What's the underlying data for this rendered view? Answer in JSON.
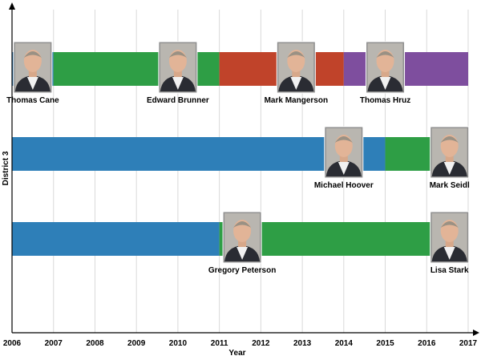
{
  "chart_data": {
    "type": "timeline",
    "title": "",
    "xlabel": "Year",
    "ylabel": "District 3",
    "xlim": [
      2006,
      2017
    ],
    "xticks": [
      "2006",
      "2007",
      "2008",
      "2009",
      "2010",
      "2011",
      "2012",
      "2013",
      "2014",
      "2015",
      "2016",
      "2017"
    ],
    "grid": "vertical",
    "colors": {
      "blue": "#2e7fb8",
      "green": "#2e9e45",
      "red": "#c0432a",
      "purple": "#7e4e9e"
    },
    "rows": [
      {
        "segments": [
          {
            "start": 2006.0,
            "end": 2007.0,
            "color": "#2e7fb8"
          },
          {
            "start": 2007.0,
            "end": 2011.0,
            "color": "#2e9e45"
          },
          {
            "start": 2011.0,
            "end": 2014.0,
            "color": "#c0432a"
          },
          {
            "start": 2014.0,
            "end": 2017.0,
            "color": "#7e4e9e"
          }
        ],
        "people": [
          {
            "name": "Thomas Cane",
            "x": 2006.5,
            "label_pos": "below"
          },
          {
            "name": "Edward Brunner",
            "x": 2010.0,
            "label_pos": "below"
          },
          {
            "name": "Mark Mangerson",
            "x": 2012.85,
            "label_pos": "below"
          },
          {
            "name": "Thomas Hruz",
            "x": 2015.0,
            "label_pos": "below"
          }
        ]
      },
      {
        "segments": [
          {
            "start": 2006.0,
            "end": 2015.0,
            "color": "#2e7fb8"
          },
          {
            "start": 2015.0,
            "end": 2017.0,
            "color": "#2e9e45"
          }
        ],
        "people": [
          {
            "name": "Michael Hoover",
            "x": 2014.0,
            "label_pos": "below"
          },
          {
            "name": "Mark Seidl",
            "x": 2016.55,
            "label_pos": "below"
          }
        ]
      },
      {
        "segments": [
          {
            "start": 2006.0,
            "end": 2011.0,
            "color": "#2e7fb8"
          },
          {
            "start": 2011.0,
            "end": 2017.0,
            "color": "#2e9e45"
          }
        ],
        "people": [
          {
            "name": "Gregory Peterson",
            "x": 2011.55,
            "label_pos": "below"
          },
          {
            "name": "Lisa Stark",
            "x": 2016.55,
            "label_pos": "below"
          }
        ]
      }
    ]
  }
}
